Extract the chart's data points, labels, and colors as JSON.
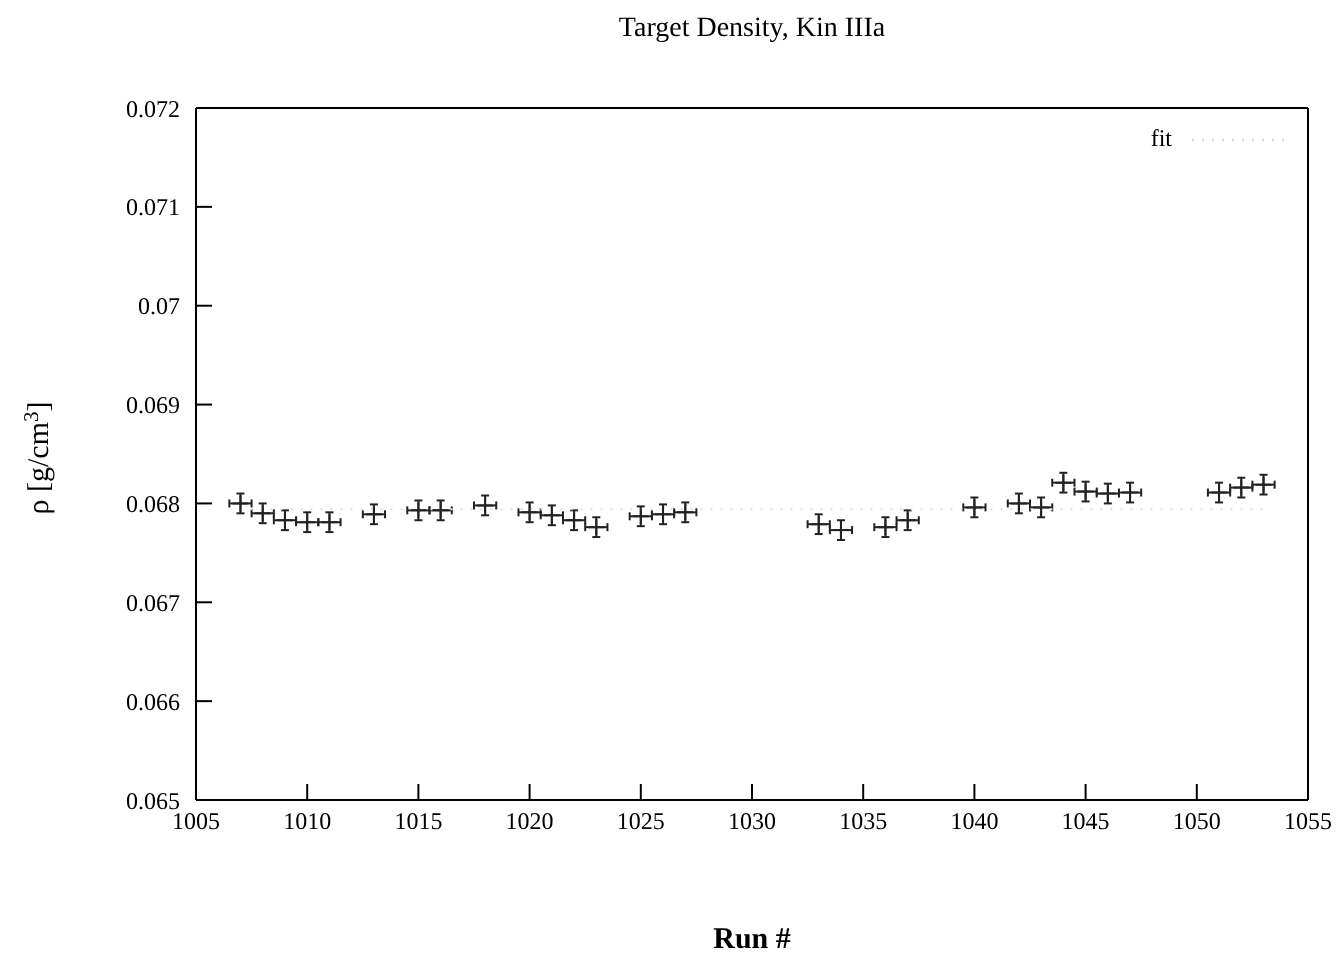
{
  "chart_data": {
    "type": "scatter",
    "title": "Target Density, Kin IIIa",
    "xlabel": "Run #",
    "ylabel": "ρ [g/cm$^{3}$]",
    "xlim": [
      1005,
      1055
    ],
    "xticks": [
      1005,
      1010,
      1015,
      1020,
      1025,
      1030,
      1035,
      1040,
      1045,
      1050,
      1055
    ],
    "ylim": [
      0.065,
      0.072
    ],
    "yticks": [
      0.065,
      0.066,
      0.067,
      0.068,
      0.069,
      0.07,
      0.071,
      0.072
    ],
    "legend": "top right",
    "series": [
      {
        "marker": "cross",
        "color": "#222222",
        "x": [
          1007,
          1008,
          1009,
          1010,
          1011,
          1013,
          1015,
          1016,
          1018,
          1020,
          1021,
          1022,
          1023,
          1025,
          1026,
          1027,
          1033,
          1034,
          1036,
          1037,
          1040,
          1042,
          1043,
          1044,
          1045,
          1046,
          1047,
          1051,
          1052,
          1053
        ],
        "values": [
          0.068,
          0.0679,
          0.06783,
          0.06781,
          0.06781,
          0.06789,
          0.06793,
          0.06793,
          0.06798,
          0.06791,
          0.06788,
          0.06783,
          0.06776,
          0.06787,
          0.06789,
          0.06791,
          0.06779,
          0.06773,
          0.06776,
          0.06783,
          0.06796,
          0.068,
          0.06796,
          0.06821,
          0.06812,
          0.0681,
          0.06811,
          0.06811,
          0.06816,
          0.06819
        ],
        "errors": [
          0.0001,
          0.0001,
          0.0001,
          0.0001,
          0.0001,
          0.0001,
          0.0001,
          0.0001,
          0.0001,
          0.0001,
          0.0001,
          0.0001,
          0.0001,
          0.0001,
          0.0001,
          0.0001,
          0.0001,
          0.0001,
          0.0001,
          0.0001,
          0.0001,
          0.0001,
          0.0001,
          0.0001,
          0.0001,
          0.0001,
          0.0001,
          0.0001,
          0.0001,
          0.0001
        ],
        "xerrors": [
          0.5,
          0.5,
          0.5,
          0.5,
          0.5,
          0.5,
          0.5,
          0.5,
          0.5,
          0.5,
          0.5,
          0.5,
          0.5,
          0.5,
          0.5,
          0.5,
          0.5,
          0.5,
          0.5,
          0.5,
          0.5,
          0.5,
          0.5,
          0.5,
          0.5,
          0.5,
          0.5,
          0.5,
          0.5,
          0.5
        ]
      },
      {
        "type": "line",
        "name": "fit",
        "color": "#dddddd",
        "line_style": "dotted",
        "marker": "none",
        "x": [
          1007,
          1053
        ],
        "values": [
          0.06794,
          0.06794
        ]
      }
    ]
  }
}
